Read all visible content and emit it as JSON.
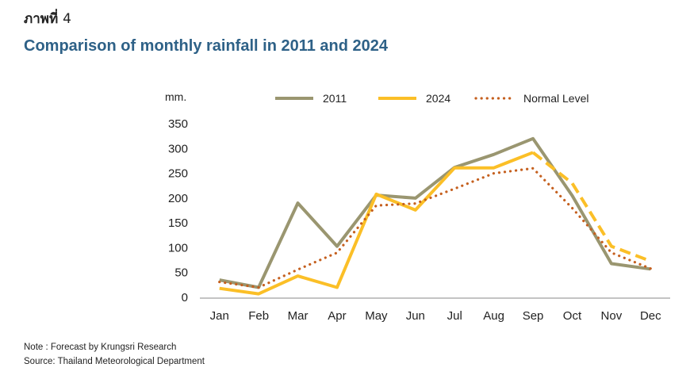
{
  "figure_label": "ภาพที่",
  "figure_number": "4",
  "title": "Comparison of monthly rainfall in 2011 and 2024",
  "unit_label": "mm.",
  "notes": {
    "note": "Note : Forecast by Krungsri Research",
    "source": "Source: Thailand Meteorological Department"
  },
  "chart_data": {
    "type": "line",
    "title": "Comparison of monthly rainfall in 2011 and 2024",
    "ylabel": "mm.",
    "xlabel": "",
    "categories": [
      "Jan",
      "Feb",
      "Mar",
      "Apr",
      "May",
      "Jun",
      "Jul",
      "Aug",
      "Sep",
      "Oct",
      "Nov",
      "Dec"
    ],
    "ylim": [
      0,
      350
    ],
    "yticks": [
      0,
      50,
      100,
      150,
      200,
      250,
      300,
      350
    ],
    "legend_position": "top",
    "grid": false,
    "series": [
      {
        "name": "2011",
        "color": "#9a9670",
        "style": "solid",
        "values": [
          35,
          20,
          190,
          103,
          206,
          200,
          262,
          288,
          320,
          205,
          68,
          57
        ]
      },
      {
        "name": "2024",
        "color": "#fbbf27",
        "style": "solid",
        "forecast_from_index": 8,
        "forecast_style": "dashed",
        "values": [
          18,
          7,
          43,
          20,
          208,
          176,
          261,
          261,
          292,
          230,
          103,
          73
        ]
      },
      {
        "name": "Normal Level",
        "color": "#c5601f",
        "style": "dotted",
        "values": [
          31,
          20,
          56,
          90,
          185,
          189,
          219,
          250,
          260,
          180,
          90,
          58
        ]
      }
    ]
  }
}
